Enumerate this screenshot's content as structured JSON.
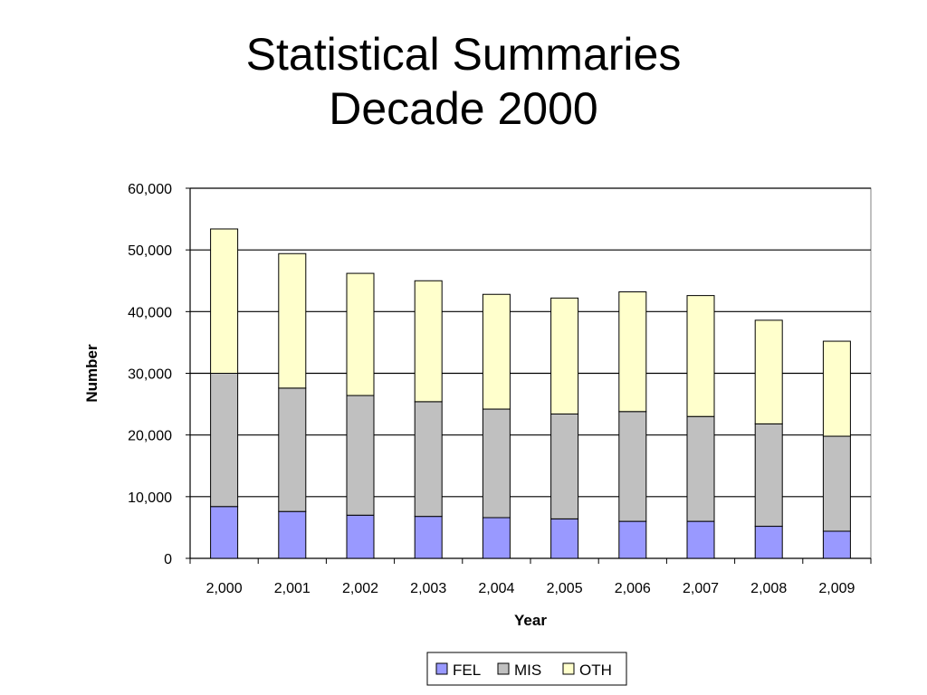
{
  "slide": {
    "title_line1": "Statistical Summaries",
    "title_line2": "Decade 2000"
  },
  "chart_data": {
    "type": "bar",
    "stacked": true,
    "categories": [
      "2,000",
      "2,001",
      "2,002",
      "2,003",
      "2,004",
      "2,005",
      "2,006",
      "2,007",
      "2,008",
      "2,009"
    ],
    "series": [
      {
        "name": "FEL",
        "color": "#9999ff",
        "values": [
          8400,
          7600,
          7000,
          6800,
          6600,
          6400,
          6000,
          6000,
          5200,
          4400
        ]
      },
      {
        "name": "MIS",
        "color": "#c0c0c0",
        "values": [
          21600,
          20000,
          19400,
          18600,
          17600,
          17000,
          17800,
          17000,
          16600,
          15400
        ]
      },
      {
        "name": "OTH",
        "color": "#ffffcc",
        "values": [
          23400,
          21800,
          19800,
          19600,
          18600,
          18800,
          19400,
          19600,
          16800,
          15400
        ]
      }
    ],
    "xlabel": "Year",
    "ylabel": "Number",
    "ylim": [
      0,
      60000
    ],
    "yticks": [
      0,
      10000,
      20000,
      30000,
      40000,
      50000,
      60000
    ],
    "ytick_labels": [
      "0",
      "10,000",
      "20,000",
      "30,000",
      "40,000",
      "50,000",
      "60,000"
    ],
    "grid": true,
    "legend_position": "bottom"
  }
}
